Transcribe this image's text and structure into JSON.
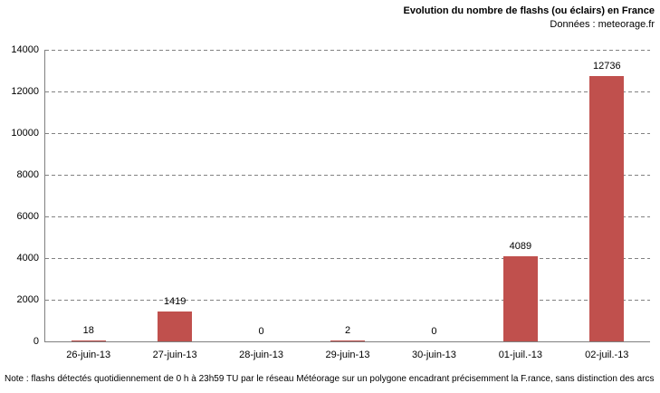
{
  "header": {
    "title": "Evolution du nombre de flashs (ou éclairs) en France",
    "subtitle": "Données : meteorage.fr"
  },
  "note": "Note : flashs détectés quotidiennement de 0 h à 23h59 TU par le réseau Météorage sur un polygone encadrant précisemment la F.rance, sans distinction des arcs",
  "chart_data": {
    "type": "bar",
    "title": "Evolution du nombre de flashs (ou éclairs) en France",
    "subtitle": "Données : meteorage.fr",
    "categories": [
      "26-juin-13",
      "27-juin-13",
      "28-juin-13",
      "29-juin-13",
      "30-juin-13",
      "01-juil.-13",
      "02-juil.-13"
    ],
    "values": [
      18,
      1419,
      0,
      2,
      0,
      4089,
      12736
    ],
    "ylim": [
      0,
      14000
    ],
    "ytick_step": 2000,
    "ytick_labels": [
      "0",
      "2000",
      "4000",
      "6000",
      "8000",
      "10000",
      "12000",
      "14000"
    ],
    "xlabel": "",
    "ylabel": "",
    "grid": "horizontal-dashed",
    "legend": "none",
    "data_labels": true,
    "bar_color": "#C0504D",
    "axis_color": "#808080",
    "gridline_color": "#828282"
  }
}
